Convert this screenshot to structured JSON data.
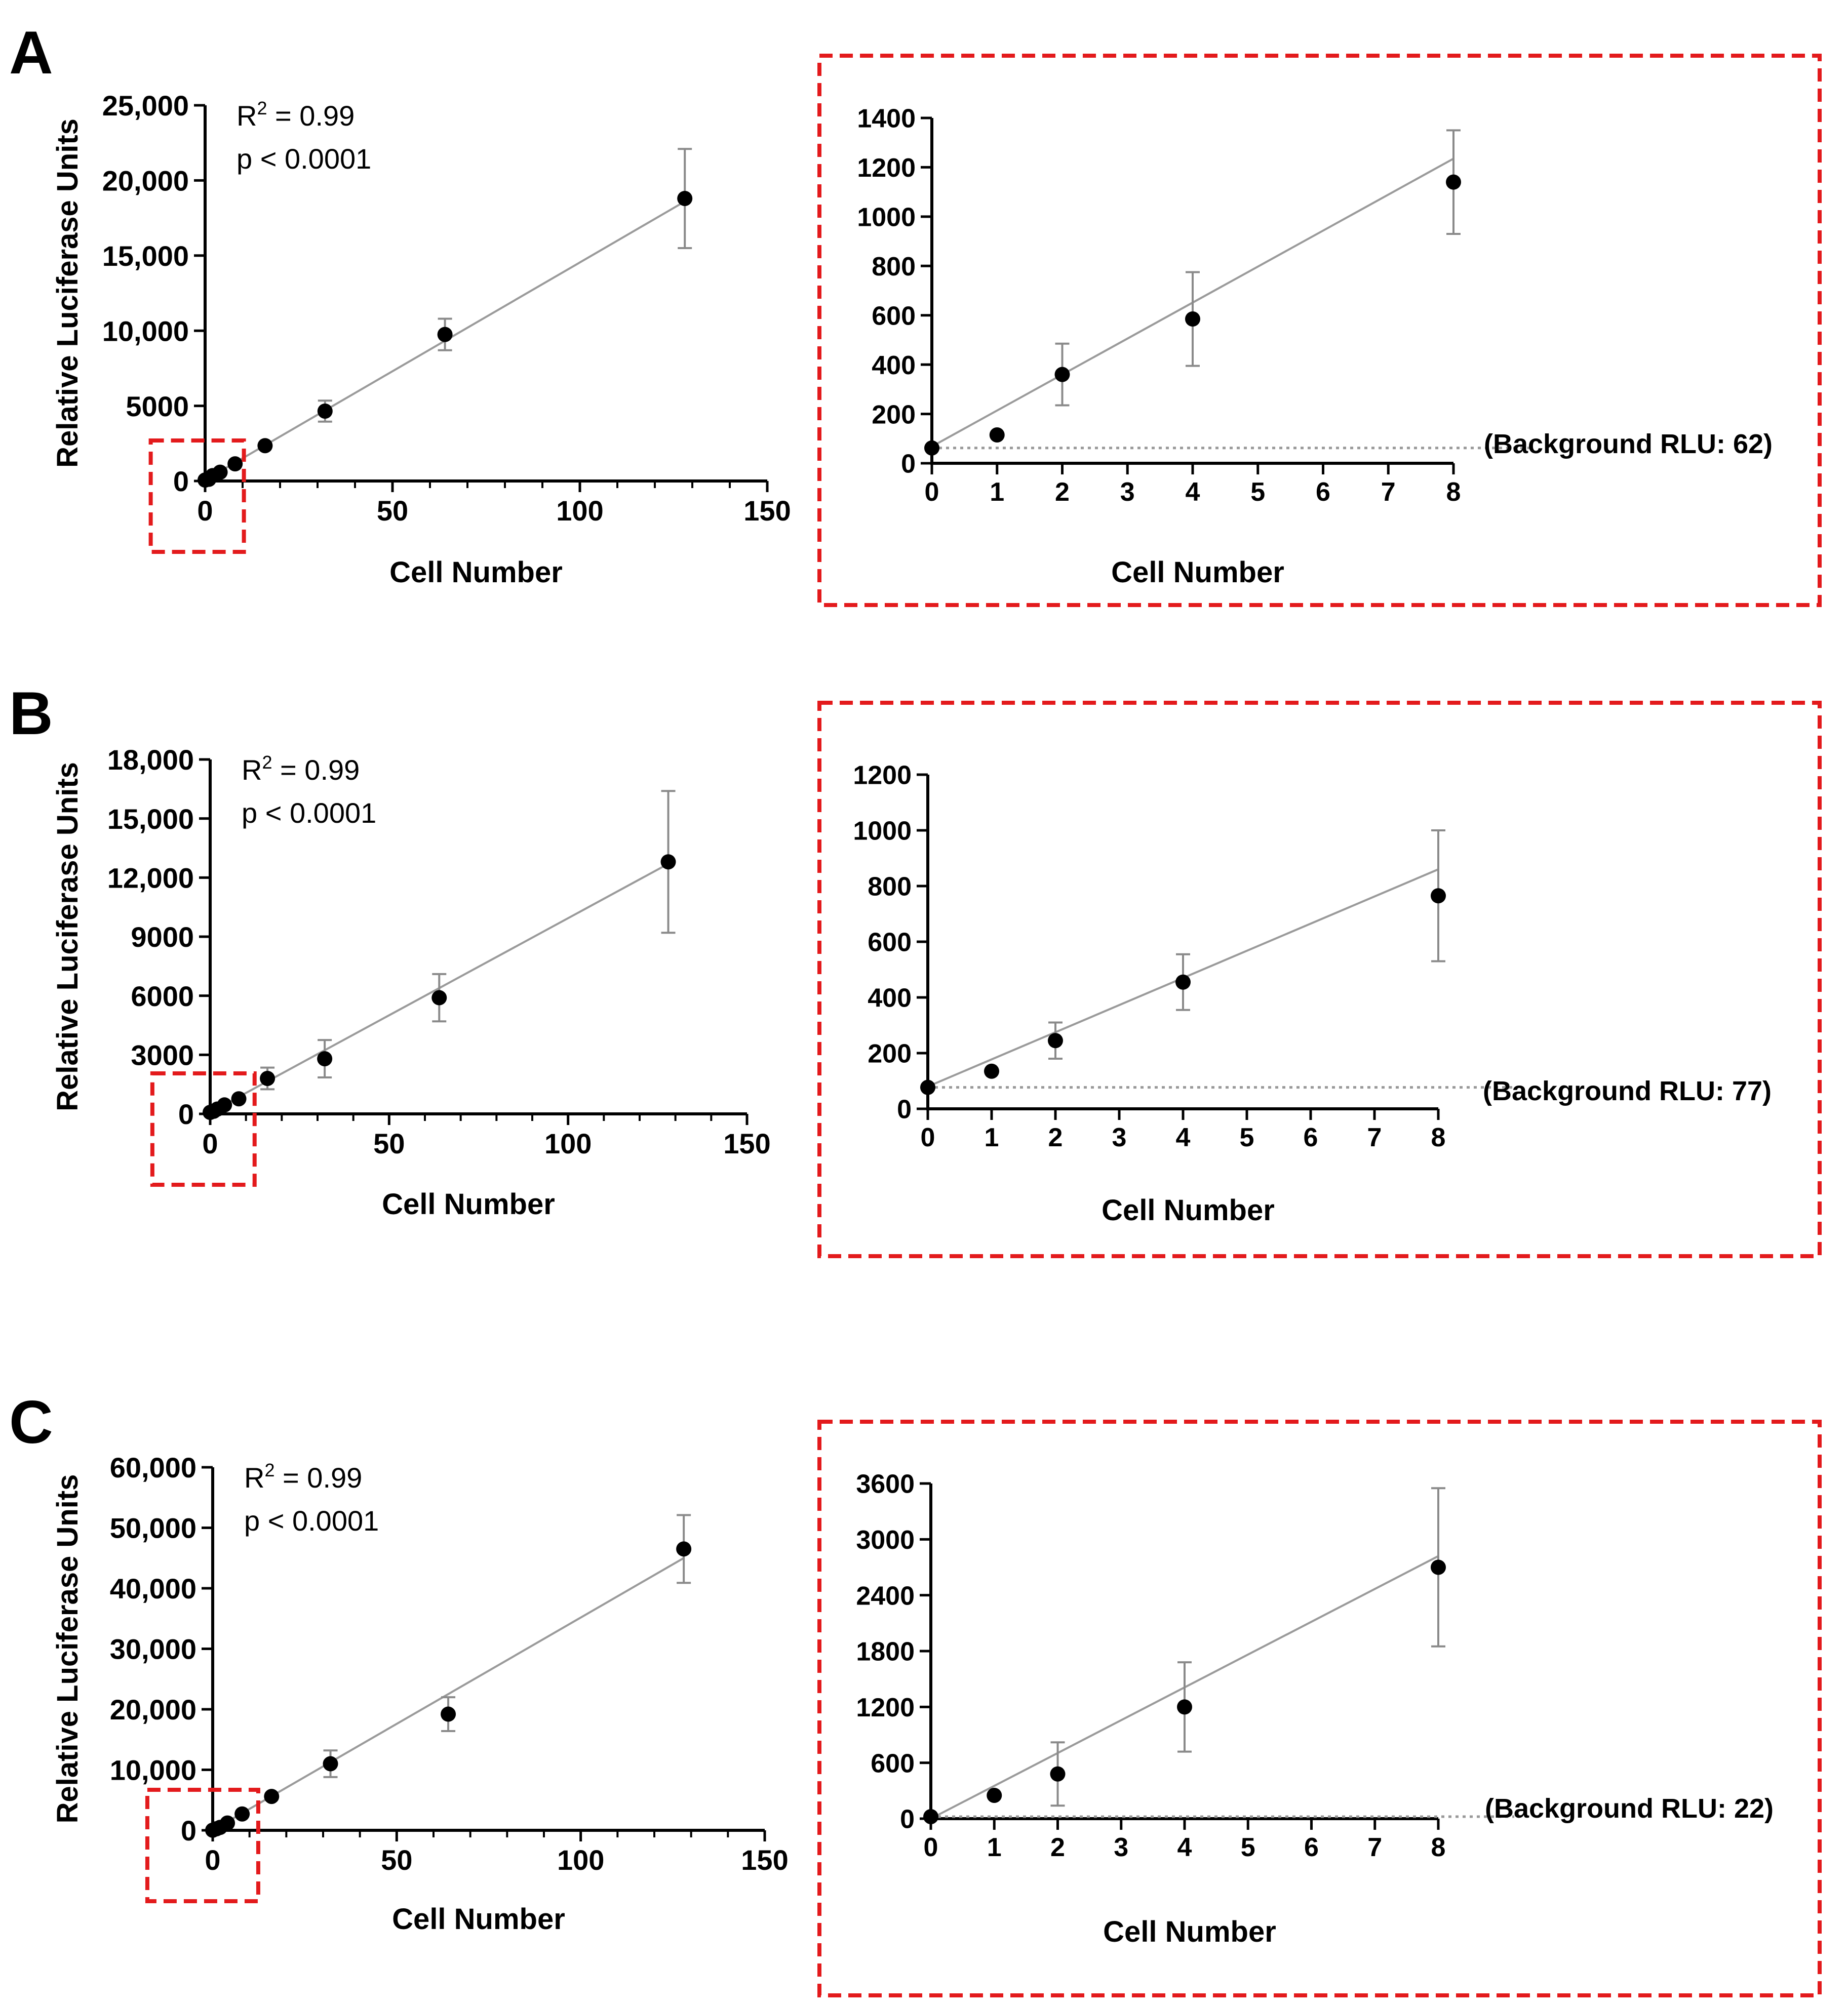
{
  "panels": [
    {
      "letter": "A",
      "stats": {
        "r2_prefix": "R",
        "r2_sup": "2",
        "r2_value": " = 0.99",
        "p_text": "p < 0.0001"
      },
      "background_label": "(Background RLU: 62)"
    },
    {
      "letter": "B",
      "stats": {
        "r2_prefix": "R",
        "r2_sup": "2",
        "r2_value": " = 0.99",
        "p_text": "p < 0.0001"
      },
      "background_label": "(Background RLU: 77)"
    },
    {
      "letter": "C",
      "stats": {
        "r2_prefix": "R",
        "r2_sup": "2",
        "r2_value": " = 0.99",
        "p_text": "p < 0.0001"
      },
      "background_label": "(Background RLU: 22)"
    }
  ],
  "colors": {
    "marker": "#000000",
    "fit_line": "#9a9a9a",
    "error_bar": "#8a8a8a",
    "highlight_box": "#e31a1c",
    "background_line": "#999999"
  },
  "chart_data": [
    {
      "panel": "A",
      "view": "full",
      "type": "scatter",
      "xlabel": "Cell Number",
      "ylabel": "Relative Luciferase Units",
      "xlim": [
        0,
        150
      ],
      "ylim": [
        0,
        25000
      ],
      "xticks": [
        0,
        50,
        100,
        150
      ],
      "xtick_labels": [
        "0",
        "50",
        "100",
        "150"
      ],
      "yticks": [
        0,
        5000,
        10000,
        15000,
        20000,
        25000
      ],
      "ytick_labels": [
        "0",
        "5000",
        "10,000",
        "15,000",
        "20,000",
        "25,000"
      ],
      "x": [
        0,
        1,
        2,
        4,
        8,
        16,
        32,
        64,
        128
      ],
      "y": [
        62,
        115,
        360,
        585,
        1140,
        2350,
        4650,
        9750,
        18800
      ],
      "err": [
        0,
        0,
        0,
        0,
        0,
        0,
        700,
        1050,
        3300
      ],
      "fit": {
        "x": [
          0,
          128
        ],
        "y": [
          62,
          18600
        ]
      },
      "zoom_box_x": [
        -1,
        9
      ]
    },
    {
      "panel": "A",
      "view": "zoom",
      "type": "scatter",
      "xlabel": "Cell Number",
      "ylabel": "",
      "xlim": [
        0,
        8
      ],
      "ylim": [
        0,
        1400
      ],
      "xticks": [
        0,
        1,
        2,
        3,
        4,
        5,
        6,
        7,
        8
      ],
      "xtick_labels": [
        "0",
        "1",
        "2",
        "3",
        "4",
        "5",
        "6",
        "7",
        "8"
      ],
      "yticks": [
        0,
        200,
        400,
        600,
        800,
        1000,
        1200,
        1400
      ],
      "ytick_labels": [
        "0",
        "200",
        "400",
        "600",
        "800",
        "1000",
        "1200",
        "1400"
      ],
      "x": [
        0,
        1,
        2,
        4,
        8
      ],
      "y": [
        62,
        115,
        360,
        585,
        1140
      ],
      "err": [
        0,
        0,
        125,
        190,
        210
      ],
      "fit": {
        "x": [
          0,
          8
        ],
        "y": [
          68,
          1235
        ]
      },
      "background": 62
    },
    {
      "panel": "B",
      "view": "full",
      "type": "scatter",
      "xlabel": "Cell Number",
      "ylabel": "Relative Luciferase Units",
      "xlim": [
        0,
        150
      ],
      "ylim": [
        0,
        18000
      ],
      "xticks": [
        0,
        50,
        100,
        150
      ],
      "xtick_labels": [
        "0",
        "50",
        "100",
        "150"
      ],
      "yticks": [
        0,
        3000,
        6000,
        9000,
        12000,
        15000,
        18000
      ],
      "ytick_labels": [
        "0",
        "3000",
        "6000",
        "9000",
        "12,000",
        "15,000",
        "18,000"
      ],
      "x": [
        0,
        1,
        2,
        4,
        8,
        16,
        32,
        64,
        128
      ],
      "y": [
        77,
        135,
        245,
        455,
        765,
        1800,
        2800,
        5900,
        12800
      ],
      "err": [
        0,
        0,
        0,
        0,
        0,
        550,
        950,
        1200,
        3600
      ],
      "fit": {
        "x": [
          0,
          128
        ],
        "y": [
          77,
          12700
        ]
      },
      "zoom_box_x": [
        -2,
        11
      ]
    },
    {
      "panel": "B",
      "view": "zoom",
      "type": "scatter",
      "xlabel": "Cell Number",
      "ylabel": "",
      "xlim": [
        0,
        8
      ],
      "ylim": [
        0,
        1200
      ],
      "xticks": [
        0,
        1,
        2,
        3,
        4,
        5,
        6,
        7,
        8
      ],
      "xtick_labels": [
        "0",
        "1",
        "2",
        "3",
        "4",
        "5",
        "6",
        "7",
        "8"
      ],
      "yticks": [
        0,
        200,
        400,
        600,
        800,
        1000,
        1200
      ],
      "ytick_labels": [
        "0",
        "200",
        "400",
        "600",
        "800",
        "1000",
        "1200"
      ],
      "x": [
        0,
        1,
        2,
        4,
        8
      ],
      "y": [
        77,
        135,
        245,
        455,
        765
      ],
      "err": [
        0,
        0,
        65,
        100,
        235
      ],
      "fit": {
        "x": [
          0,
          8
        ],
        "y": [
          80,
          860
        ]
      },
      "background": 77
    },
    {
      "panel": "C",
      "view": "full",
      "type": "scatter",
      "xlabel": "Cell Number",
      "ylabel": "Relative Luciferase Units",
      "xlim": [
        0,
        150
      ],
      "ylim": [
        0,
        60000
      ],
      "xticks": [
        0,
        50,
        100,
        150
      ],
      "xtick_labels": [
        "0",
        "50",
        "100",
        "150"
      ],
      "yticks": [
        0,
        10000,
        20000,
        30000,
        40000,
        50000,
        60000
      ],
      "ytick_labels": [
        "0",
        "10,000",
        "20,000",
        "30,000",
        "40,000",
        "50,000",
        "60,000"
      ],
      "x": [
        0,
        1,
        2,
        4,
        8,
        16,
        32,
        64,
        128
      ],
      "y": [
        22,
        250,
        480,
        1200,
        2700,
        5600,
        11000,
        19200,
        46500
      ],
      "err": [
        0,
        0,
        0,
        0,
        0,
        0,
        2200,
        2800,
        5600
      ],
      "fit": {
        "x": [
          0,
          128
        ],
        "y": [
          22,
          45000
        ]
      },
      "zoom_box_x": [
        -4,
        11
      ]
    },
    {
      "panel": "C",
      "view": "zoom",
      "type": "scatter",
      "xlabel": "Cell Number",
      "ylabel": "",
      "xlim": [
        0,
        8
      ],
      "ylim": [
        0,
        3600
      ],
      "xticks": [
        0,
        1,
        2,
        3,
        4,
        5,
        6,
        7,
        8
      ],
      "xtick_labels": [
        "0",
        "1",
        "2",
        "3",
        "4",
        "5",
        "6",
        "7",
        "8"
      ],
      "yticks": [
        0,
        600,
        1200,
        1800,
        2400,
        3000,
        3600
      ],
      "ytick_labels": [
        "0",
        "600",
        "1200",
        "1800",
        "2400",
        "3000",
        "3600"
      ],
      "x": [
        0,
        1,
        2,
        4,
        8
      ],
      "y": [
        22,
        250,
        480,
        1200,
        2700
      ],
      "err": [
        0,
        0,
        340,
        480,
        850
      ],
      "fit": {
        "x": [
          0,
          8
        ],
        "y": [
          0,
          2820
        ]
      },
      "background": 22
    }
  ]
}
